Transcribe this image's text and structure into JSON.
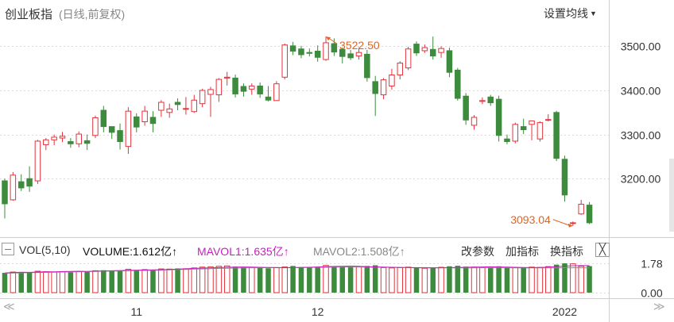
{
  "header": {
    "title": "创业板指",
    "subtitle": "(日线,前复权)",
    "ma_button_label": "设置均线"
  },
  "colors": {
    "up": "#e3343d",
    "down": "#3d8b3d",
    "mavol1": "#c51fbd",
    "mavol2": "#8a8a8a",
    "annotation": "#e2641e"
  },
  "annotations": {
    "high_label": "3522.50",
    "low_label": "3093.04"
  },
  "volume_legend": {
    "vol_label": "VOL(5,10)",
    "volume_label": "VOLUME:1.612亿",
    "mavol1_label": "MAVOL1:1.635亿",
    "mavol2_label": "MAVOL2:1.508亿",
    "arrow": "↑"
  },
  "toolbar": {
    "params_label": "改参数",
    "add_indicator_label": "加指标",
    "switch_indicator_label": "换指标",
    "close_label": "╳"
  },
  "icons": {
    "collapse": "minus-box-icon",
    "close": "close-icon",
    "scroll_left": "double-chevron-left-icon",
    "scroll_right": "double-chevron-right-icon"
  },
  "chart_data": [
    {
      "type": "candlestick",
      "ylim": [
        3080,
        3560
      ],
      "y_ticks": [
        "3500.00",
        "3400.00",
        "3300.00",
        "3200.00"
      ],
      "grid": true,
      "columns": [
        "open",
        "close",
        "high",
        "low"
      ],
      "candles": [
        [
          3195,
          3143,
          3200,
          3110
        ],
        [
          3152,
          3208,
          3215,
          3150
        ],
        [
          3193,
          3179,
          3210,
          3172
        ],
        [
          3200,
          3183,
          3228,
          3170
        ],
        [
          3195,
          3285,
          3288,
          3188
        ],
        [
          3277,
          3288,
          3292,
          3265
        ],
        [
          3288,
          3294,
          3300,
          3276
        ],
        [
          3292,
          3296,
          3306,
          3283
        ],
        [
          3284,
          3279,
          3292,
          3270
        ],
        [
          3279,
          3301,
          3307,
          3271
        ],
        [
          3286,
          3280,
          3300,
          3265
        ],
        [
          3298,
          3338,
          3343,
          3292
        ],
        [
          3355,
          3318,
          3365,
          3305
        ],
        [
          3318,
          3305,
          3318,
          3290
        ],
        [
          3309,
          3284,
          3325,
          3266
        ],
        [
          3273,
          3353,
          3362,
          3256
        ],
        [
          3340,
          3317,
          3348,
          3305
        ],
        [
          3329,
          3353,
          3365,
          3320
        ],
        [
          3339,
          3325,
          3353,
          3305
        ],
        [
          3355,
          3373,
          3378,
          3340
        ],
        [
          3350,
          3358,
          3370,
          3338
        ],
        [
          3373,
          3368,
          3382,
          3355
        ],
        [
          3359,
          3359,
          3385,
          3345
        ],
        [
          3352,
          3378,
          3390,
          3349
        ],
        [
          3370,
          3400,
          3404,
          3362
        ],
        [
          3391,
          3402,
          3408,
          3340
        ],
        [
          3390,
          3425,
          3428,
          3374
        ],
        [
          3428,
          3430,
          3442,
          3411
        ],
        [
          3428,
          3392,
          3436,
          3384
        ],
        [
          3409,
          3398,
          3416,
          3386
        ],
        [
          3403,
          3410,
          3416,
          3390
        ],
        [
          3410,
          3392,
          3418,
          3383
        ],
        [
          3385,
          3378,
          3410,
          3375
        ],
        [
          3377,
          3415,
          3421,
          3376
        ],
        [
          3430,
          3503,
          3506,
          3425
        ],
        [
          3501,
          3489,
          3510,
          3480
        ],
        [
          3494,
          3481,
          3501,
          3473
        ],
        [
          3486,
          3484,
          3495,
          3477
        ],
        [
          3489,
          3475,
          3502,
          3465
        ],
        [
          3470,
          3508,
          3522,
          3467
        ],
        [
          3506,
          3487,
          3518,
          3478
        ],
        [
          3493,
          3477,
          3497,
          3461
        ],
        [
          3483,
          3474,
          3492,
          3469
        ],
        [
          3478,
          3486,
          3497,
          3470
        ],
        [
          3482,
          3429,
          3492,
          3420
        ],
        [
          3420,
          3393,
          3433,
          3342
        ],
        [
          3390,
          3424,
          3428,
          3380
        ],
        [
          3410,
          3435,
          3449,
          3402
        ],
        [
          3435,
          3462,
          3466,
          3425
        ],
        [
          3451,
          3494,
          3499,
          3446
        ],
        [
          3505,
          3485,
          3511,
          3478
        ],
        [
          3490,
          3497,
          3504,
          3485
        ],
        [
          3493,
          3478,
          3522,
          3470
        ],
        [
          3486,
          3495,
          3500,
          3474
        ],
        [
          3490,
          3441,
          3497,
          3430
        ],
        [
          3446,
          3382,
          3451,
          3377
        ],
        [
          3387,
          3333,
          3394,
          3322
        ],
        [
          3321,
          3339,
          3344,
          3311
        ],
        [
          3375,
          3377,
          3384,
          3369
        ],
        [
          3385,
          3372,
          3390,
          3365
        ],
        [
          3380,
          3298,
          3388,
          3284
        ],
        [
          3290,
          3284,
          3300,
          3278
        ],
        [
          3285,
          3323,
          3327,
          3280
        ],
        [
          3318,
          3311,
          3336,
          3301
        ],
        [
          3323,
          3331,
          3332,
          3287
        ],
        [
          3290,
          3327,
          3330,
          3284
        ],
        [
          3334,
          3334,
          3346,
          3330
        ],
        [
          3350,
          3246,
          3354,
          3240
        ],
        [
          3244,
          3163,
          3252,
          3148
        ],
        [
          3100,
          3100,
          3103,
          3093
        ],
        [
          3120,
          3142,
          3152,
          3118
        ],
        [
          3140,
          3100,
          3147,
          3097
        ]
      ],
      "mavol1_line": [
        1.2,
        1.22,
        1.24,
        1.23,
        1.25,
        1.27,
        1.26,
        1.28,
        1.29,
        1.3,
        1.29,
        1.31,
        1.32,
        1.33,
        1.34,
        1.35,
        1.36,
        1.37,
        1.38,
        1.39,
        1.41,
        1.43,
        1.45,
        1.47,
        1.49,
        1.5,
        1.52,
        1.54,
        1.55,
        1.56,
        1.55,
        1.54,
        1.53,
        1.52,
        1.51,
        1.52,
        1.53,
        1.54,
        1.56,
        1.58,
        1.59,
        1.6,
        1.61,
        1.6,
        1.58,
        1.56,
        1.55,
        1.54,
        1.53,
        1.52,
        1.51,
        1.5,
        1.5,
        1.51,
        1.52,
        1.53,
        1.54,
        1.55,
        1.56,
        1.57,
        1.56,
        1.55,
        1.54,
        1.53,
        1.52,
        1.53,
        1.55,
        1.58,
        1.61,
        1.63,
        1.64,
        1.635
      ],
      "mavol2_line": [
        1.18,
        1.19,
        1.2,
        1.21,
        1.22,
        1.23,
        1.24,
        1.25,
        1.26,
        1.27,
        1.28,
        1.29,
        1.3,
        1.31,
        1.32,
        1.33,
        1.34,
        1.35,
        1.36,
        1.37,
        1.38,
        1.4,
        1.41,
        1.43,
        1.44,
        1.46,
        1.47,
        1.48,
        1.49,
        1.5,
        1.51,
        1.51,
        1.52,
        1.52,
        1.52,
        1.52,
        1.53,
        1.53,
        1.54,
        1.54,
        1.55,
        1.55,
        1.56,
        1.56,
        1.55,
        1.55,
        1.54,
        1.54,
        1.53,
        1.53,
        1.52,
        1.52,
        1.51,
        1.51,
        1.5,
        1.5,
        1.5,
        1.5,
        1.51,
        1.51,
        1.51,
        1.51,
        1.5,
        1.5,
        1.5,
        1.5,
        1.5,
        1.5,
        1.51,
        1.51,
        1.51,
        1.508
      ]
    },
    {
      "type": "bar",
      "ylim": [
        0,
        1.78
      ],
      "y_ticks": [
        "1.78",
        "0.00"
      ],
      "x_ticks": [
        {
          "index": 16,
          "label": "11"
        },
        {
          "index": 38,
          "label": "12"
        },
        {
          "index": 68,
          "label": "2022"
        }
      ],
      "volumes": [
        1.2,
        1.25,
        1.23,
        1.22,
        1.3,
        1.27,
        1.25,
        1.26,
        1.24,
        1.28,
        1.26,
        1.33,
        1.36,
        1.34,
        1.35,
        1.42,
        1.38,
        1.4,
        1.37,
        1.44,
        1.43,
        1.47,
        1.45,
        1.5,
        1.55,
        1.57,
        1.6,
        1.62,
        1.58,
        1.55,
        1.52,
        1.5,
        1.48,
        1.52,
        1.56,
        1.62,
        1.55,
        1.53,
        1.57,
        1.65,
        1.6,
        1.58,
        1.55,
        1.56,
        1.62,
        1.66,
        1.52,
        1.5,
        1.52,
        1.55,
        1.5,
        1.48,
        1.52,
        1.54,
        1.6,
        1.63,
        1.58,
        1.55,
        1.54,
        1.53,
        1.6,
        1.56,
        1.52,
        1.5,
        1.55,
        1.53,
        1.58,
        1.7,
        1.78,
        1.75,
        1.6,
        1.612
      ]
    }
  ]
}
